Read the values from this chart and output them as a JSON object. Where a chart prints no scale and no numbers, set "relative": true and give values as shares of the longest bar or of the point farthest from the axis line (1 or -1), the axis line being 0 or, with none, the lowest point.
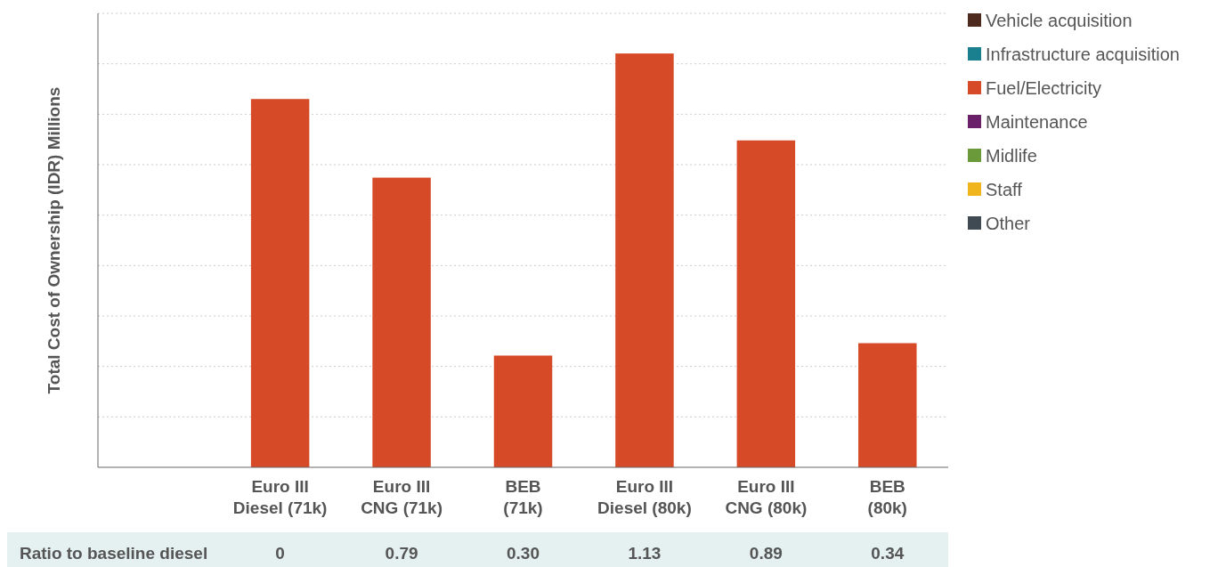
{
  "chart_data": {
    "type": "bar",
    "relative": true,
    "ylabel": "Total Cost of Ownership (IDR) Millions",
    "categories": [
      null,
      "Euro III\nDiesel (71k)",
      "Euro III\nCNG (71k)",
      "BEB\n(71k)",
      "Euro III\nDiesel (80k)",
      "Euro III\nCNG (80k)",
      "BEB\n(80k)"
    ],
    "series": [
      {
        "name": "Vehicle acquisition",
        "color": "#4e2a1e",
        "values": [
          null,
          null,
          null,
          null,
          null,
          null,
          null
        ]
      },
      {
        "name": "Infrastructure acquisition",
        "color": "#1a7f8e",
        "values": [
          null,
          null,
          null,
          null,
          null,
          null,
          null
        ]
      },
      {
        "name": "Fuel/Electricity",
        "color": "#d64a27",
        "values": [
          null,
          0.89,
          0.7,
          0.27,
          1,
          0.79,
          0.3
        ]
      },
      {
        "name": "Maintenance",
        "color": "#6b2169",
        "values": [
          null,
          null,
          null,
          null,
          null,
          null,
          null
        ]
      },
      {
        "name": "Midlife",
        "color": "#6a9a3a",
        "values": [
          null,
          null,
          null,
          null,
          null,
          null,
          null
        ]
      },
      {
        "name": "Staff",
        "color": "#f0b41c",
        "values": [
          null,
          null,
          null,
          null,
          null,
          null,
          null
        ]
      },
      {
        "name": "Other",
        "color": "#3f4a52",
        "values": [
          null,
          null,
          null,
          null,
          null,
          null,
          null
        ]
      }
    ],
    "annotations": [
      "Ratio to baseline diesel",
      "0",
      "0.79",
      "0.30",
      "1.13",
      "0.89",
      "0.34"
    ],
    "grid": "y",
    "legend": "right"
  }
}
